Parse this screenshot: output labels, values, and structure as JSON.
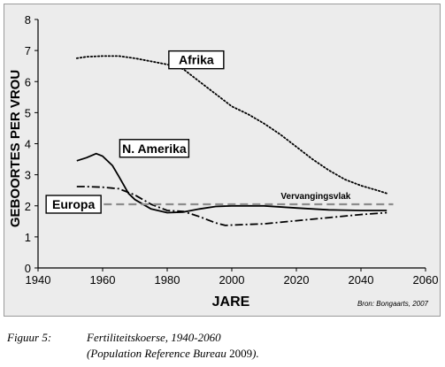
{
  "chart_data": {
    "type": "line",
    "xlabel": "JARE",
    "ylabel": "GEBOORTES PER VROU",
    "xlim": [
      1940,
      2060
    ],
    "ylim": [
      0,
      8
    ],
    "xticks": [
      1940,
      1960,
      1980,
      2000,
      2020,
      2040,
      2060
    ],
    "yticks": [
      0,
      1,
      2,
      3,
      4,
      5,
      6,
      7,
      8
    ],
    "grid": false,
    "series": [
      {
        "name": "Afrika",
        "style": "dotted",
        "x": [
          1952,
          1955,
          1960,
          1965,
          1970,
          1975,
          1980,
          1985,
          1990,
          1995,
          2000,
          2005,
          2010,
          2015,
          2020,
          2025,
          2030,
          2035,
          2040,
          2045,
          2048
        ],
        "y": [
          6.75,
          6.8,
          6.82,
          6.82,
          6.75,
          6.65,
          6.55,
          6.4,
          6.0,
          5.6,
          5.2,
          4.95,
          4.65,
          4.3,
          3.9,
          3.5,
          3.15,
          2.85,
          2.65,
          2.5,
          2.4
        ]
      },
      {
        "name": "N. Amerika",
        "style": "solid",
        "x": [
          1952,
          1955,
          1958,
          1960,
          1963,
          1965,
          1968,
          1970,
          1975,
          1980,
          1985,
          1990,
          1995,
          2000,
          2010,
          2020,
          2030,
          2040,
          2048
        ],
        "y": [
          3.45,
          3.55,
          3.68,
          3.6,
          3.3,
          2.95,
          2.4,
          2.2,
          1.9,
          1.78,
          1.8,
          1.9,
          1.98,
          2.0,
          2.0,
          1.93,
          1.87,
          1.85,
          1.85
        ]
      },
      {
        "name": "Europa",
        "style": "dashdot",
        "x": [
          1952,
          1955,
          1960,
          1965,
          1970,
          1975,
          1980,
          1985,
          1990,
          1995,
          1998,
          2000,
          2010,
          2020,
          2030,
          2040,
          2048
        ],
        "y": [
          2.62,
          2.62,
          2.6,
          2.55,
          2.35,
          2.05,
          1.85,
          1.82,
          1.65,
          1.45,
          1.37,
          1.38,
          1.42,
          1.52,
          1.62,
          1.72,
          1.78
        ]
      },
      {
        "name": "Vervangingsvlak",
        "style": "dashed",
        "x": [
          1945,
          2050
        ],
        "y": [
          2.05,
          2.05
        ]
      }
    ],
    "annotations": {
      "afrika": "Afrika",
      "namerika": "N. Amerika",
      "europa": "Europa",
      "vervangingsvlak": "Vervangingsvlak",
      "source": "Bron: Bongaarts, 2007"
    },
    "colors": {
      "line": "#000000",
      "replacement": "#8c8c8c",
      "background": "#ececec"
    }
  },
  "caption": {
    "label": "Figuur 5:",
    "line1": "Fertiliteitskoerse, 1940-2060",
    "line2_italic_start": "(Population Reference Bureau",
    "line2_roman": " 2009",
    "line2_italic_end": ")."
  }
}
